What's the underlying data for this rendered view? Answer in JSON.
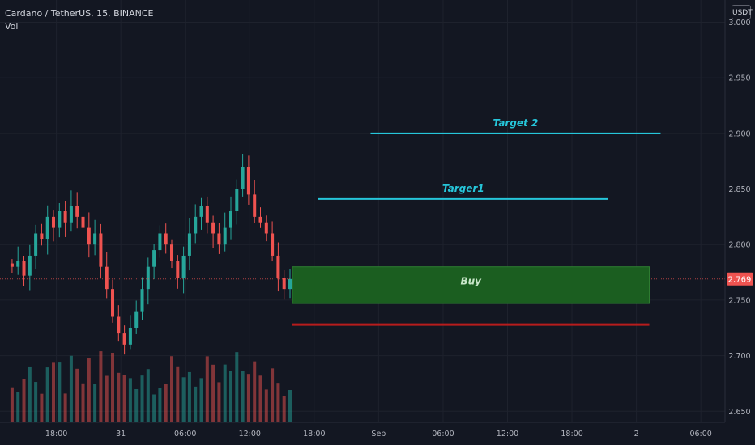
{
  "header": {
    "symbol_line": "Cardano / TetherUS, 15, BINANCE",
    "volume_label": "Vol"
  },
  "currency_button": "USDT",
  "last_price": "2.769",
  "colors": {
    "background": "#131722",
    "grid": "#1e222d",
    "up": "#26a69a",
    "down": "#ef5350",
    "target": "#26c6da",
    "stop": "#b71c1c",
    "buy_zone": "#1b5e20",
    "buy_zone_border": "#2e7d32",
    "price_tag": "#ef5350"
  },
  "chart_data": {
    "type": "candlestick",
    "y_axis": {
      "range": [
        2.64,
        3.02
      ],
      "ticks": [
        "3.000",
        "2.950",
        "2.900",
        "2.850",
        "2.800",
        "2.750",
        "2.700",
        "2.650"
      ]
    },
    "x_axis": {
      "range": [
        0,
        90
      ],
      "ticks": [
        {
          "label": "18:00",
          "t": 7
        },
        {
          "label": "31",
          "t": 15
        },
        {
          "label": "06:00",
          "t": 23
        },
        {
          "label": "12:00",
          "t": 31
        },
        {
          "label": "18:00",
          "t": 39
        },
        {
          "label": "Sep",
          "t": 47
        },
        {
          "label": "06:00",
          "t": 55
        },
        {
          "label": "12:00",
          "t": 63
        },
        {
          "label": "18:00",
          "t": 71
        },
        {
          "label": "2",
          "t": 79
        },
        {
          "label": "06:00",
          "t": 87
        }
      ]
    },
    "candle_close": [
      2.78,
      2.785,
      2.772,
      2.79,
      2.81,
      2.805,
      2.825,
      2.815,
      2.83,
      2.82,
      2.835,
      2.825,
      2.815,
      2.8,
      2.81,
      2.78,
      2.76,
      2.735,
      2.72,
      2.71,
      2.725,
      2.74,
      2.76,
      2.78,
      2.795,
      2.81,
      2.8,
      2.785,
      2.77,
      2.79,
      2.81,
      2.825,
      2.835,
      2.82,
      2.81,
      2.8,
      2.815,
      2.83,
      2.85,
      2.87,
      2.845,
      2.825,
      2.82,
      2.81,
      2.79,
      2.77,
      2.76,
      2.769
    ],
    "annotations": [
      {
        "kind": "line",
        "label": "Target 2",
        "price": 2.9,
        "t_start": 46,
        "t_end": 82
      },
      {
        "kind": "line",
        "label": "Targer1",
        "price": 2.841,
        "t_start": 39.5,
        "t_end": 75.5
      },
      {
        "kind": "zone",
        "label": "Buy",
        "price_top": 2.78,
        "price_bottom": 2.747,
        "t_start": 36.3,
        "t_end": 80.6
      },
      {
        "kind": "line",
        "label": "",
        "price": 2.728,
        "t_start": 36.3,
        "t_end": 80.6
      }
    ]
  }
}
